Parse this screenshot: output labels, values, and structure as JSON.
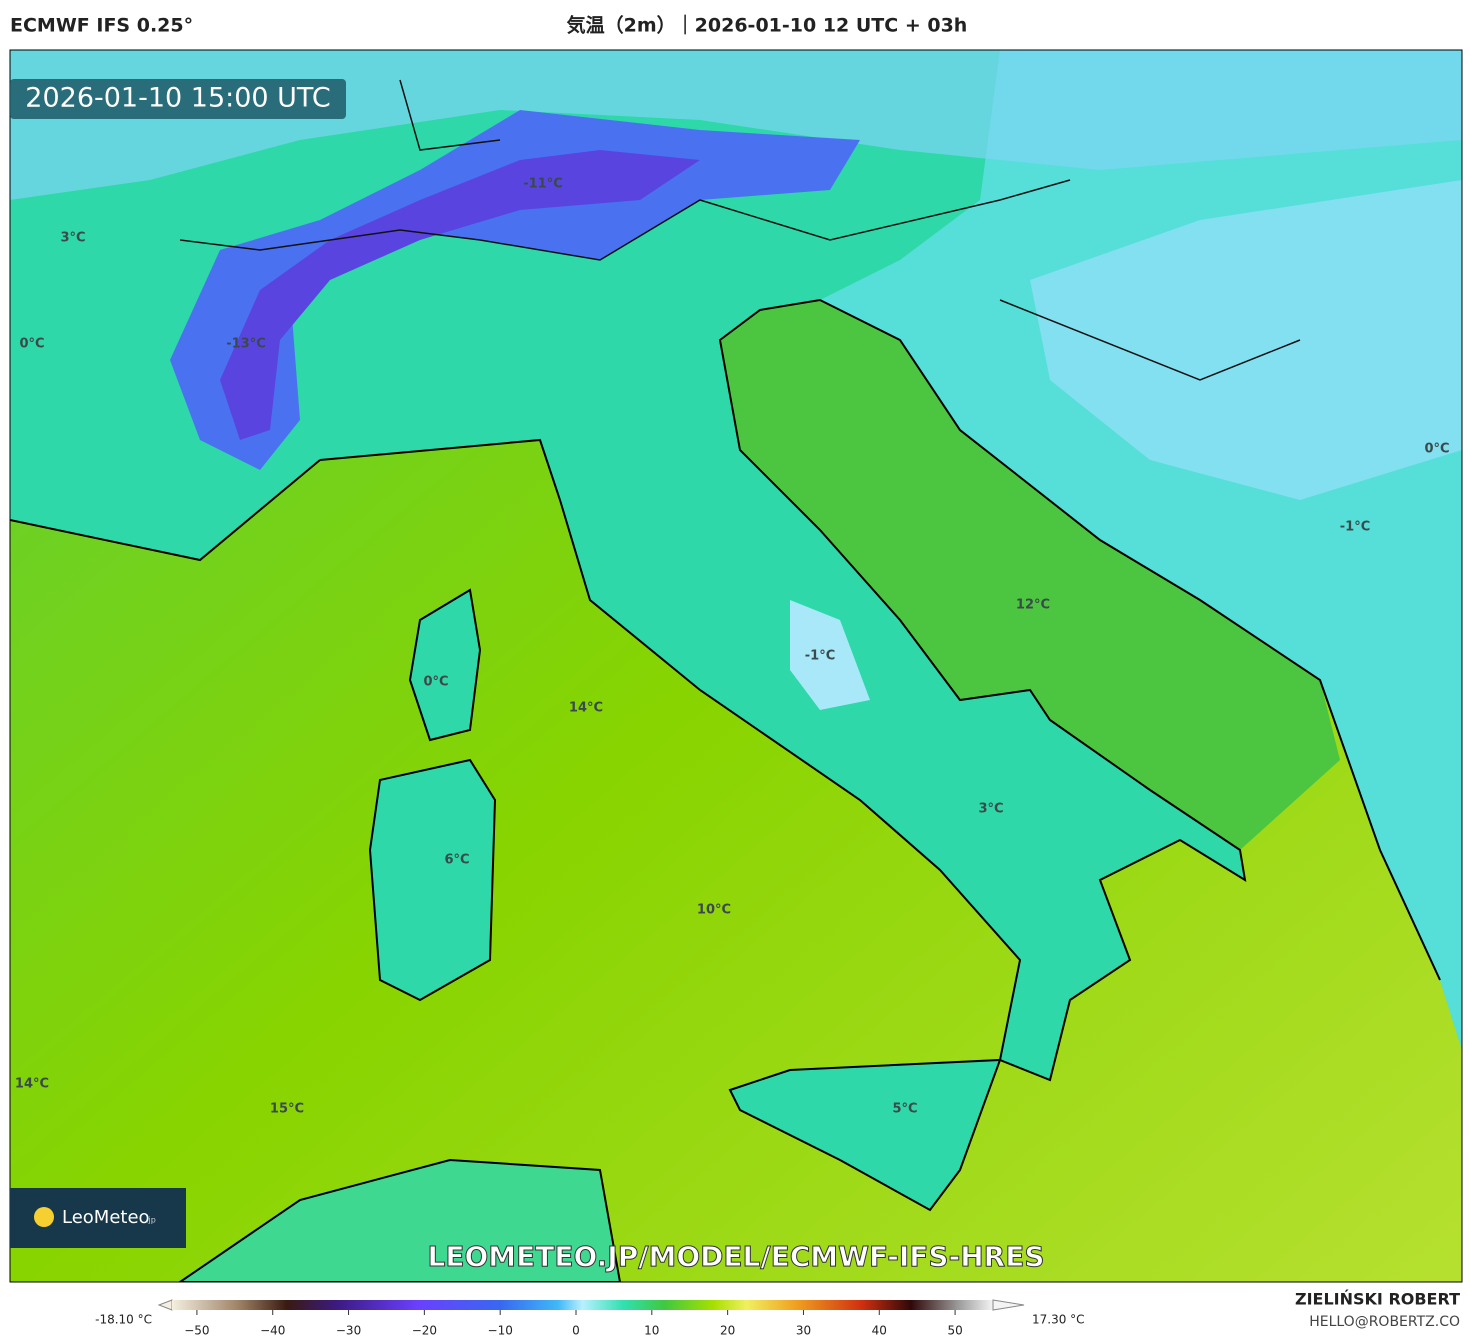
{
  "header": {
    "model": "ECMWF IFS 0.25°",
    "title": "気温（2m）｜2026-01-10 12 UTC + 03h"
  },
  "timestamp": "2026-01-10 15:00 UTC",
  "map_labels": [
    "-11°C",
    "3°C",
    "0°C",
    "-13°C",
    "0°C",
    "14°C",
    "-1°C",
    "12°C",
    "0°C",
    "-1°C",
    "3°C",
    "6°C",
    "10°C",
    "14°C",
    "15°C",
    "5°C"
  ],
  "logo": {
    "name": "LeoMeteo",
    "suffix": ".jp"
  },
  "url": "LEOMETEO.JP/MODEL/ECMWF-IFS-HRES",
  "legend": {
    "min_label": "-18.10 °C",
    "max_label": "17.30 °C",
    "lim": [
      -55,
      55
    ],
    "ticks": [
      {
        "value": -50,
        "label": "−50"
      },
      {
        "value": -40,
        "label": "−40"
      },
      {
        "value": -30,
        "label": "−30"
      },
      {
        "value": -20,
        "label": "−20"
      },
      {
        "value": -10,
        "label": "−10"
      },
      0,
      10,
      20,
      30,
      40,
      50
    ]
  },
  "credits": {
    "author": "ZIELIŃSKI ROBERT",
    "email": "HELLO@ROBERTZ.CO"
  }
}
